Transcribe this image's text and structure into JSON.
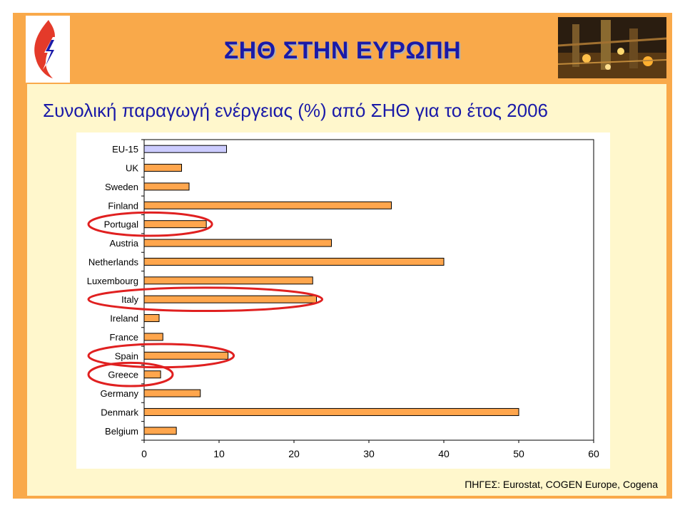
{
  "slide": {
    "title": "ΣΗΘ ΣΤΗΝ ΕΥΡΩΠΗ",
    "subtitle": "Συνολική παραγωγή ενέργειας (%) από ΣΗΘ για το έτος 2006",
    "source": "ΠΗΓΕΣ: Eurostat, COGEN Europe, Cogena"
  },
  "colors": {
    "background_orange": "#f9a94a",
    "panel_cream": "#fff7cc",
    "title_blue": "#1a1aa8",
    "bar_orange": "#ffa64d",
    "bar_eu15": "#ccccff",
    "highlight_red": "#e02020"
  },
  "chart_data": {
    "type": "bar",
    "orientation": "horizontal",
    "categories": [
      "EU-15",
      "UK",
      "Sweden",
      "Finland",
      "Portugal",
      "Austria",
      "Netherlands",
      "Luxembourg",
      "Italy",
      "Ireland",
      "France",
      "Spain",
      "Greece",
      "Germany",
      "Denmark",
      "Belgium"
    ],
    "values": [
      11,
      5,
      6,
      33,
      8.3,
      25,
      40,
      22.5,
      23,
      2,
      2.5,
      11.2,
      2.2,
      7.5,
      50,
      4.3
    ],
    "highlighted": [
      "Portugal",
      "Italy",
      "Spain",
      "Greece"
    ],
    "xlim": [
      0,
      60
    ],
    "xticks": [
      "0",
      "10",
      "20",
      "30",
      "40",
      "50",
      "60"
    ],
    "grid": false,
    "legend": "none"
  }
}
